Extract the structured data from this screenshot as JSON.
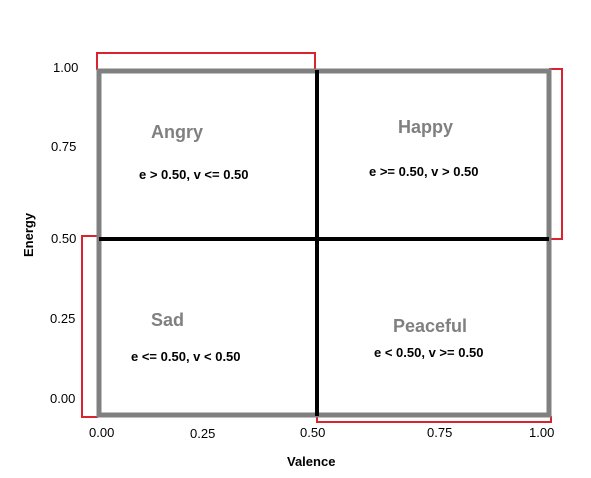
{
  "axes": {
    "x_label": "Valence",
    "y_label": "Energy",
    "x_ticks": [
      "0.00",
      "0.25",
      "0.50",
      "0.75",
      "1.00"
    ],
    "y_ticks": [
      "1.00",
      "0.75",
      "0.50",
      "0.25",
      "0.00"
    ]
  },
  "quadrants": {
    "angry": {
      "name": "Angry",
      "condition": "e > 0.50, v <= 0.50"
    },
    "happy": {
      "name": "Happy",
      "condition": "e >= 0.50, v > 0.50"
    },
    "sad": {
      "name": "Sad",
      "condition": "e <= 0.50, v < 0.50"
    },
    "peaceful": {
      "name": "Peaceful",
      "condition": "e < 0.50, v >= 0.50"
    }
  },
  "colors": {
    "frame": "#808080",
    "divider": "#000000",
    "highlight": "#d9232e",
    "quadrant_name": "#808080"
  }
}
